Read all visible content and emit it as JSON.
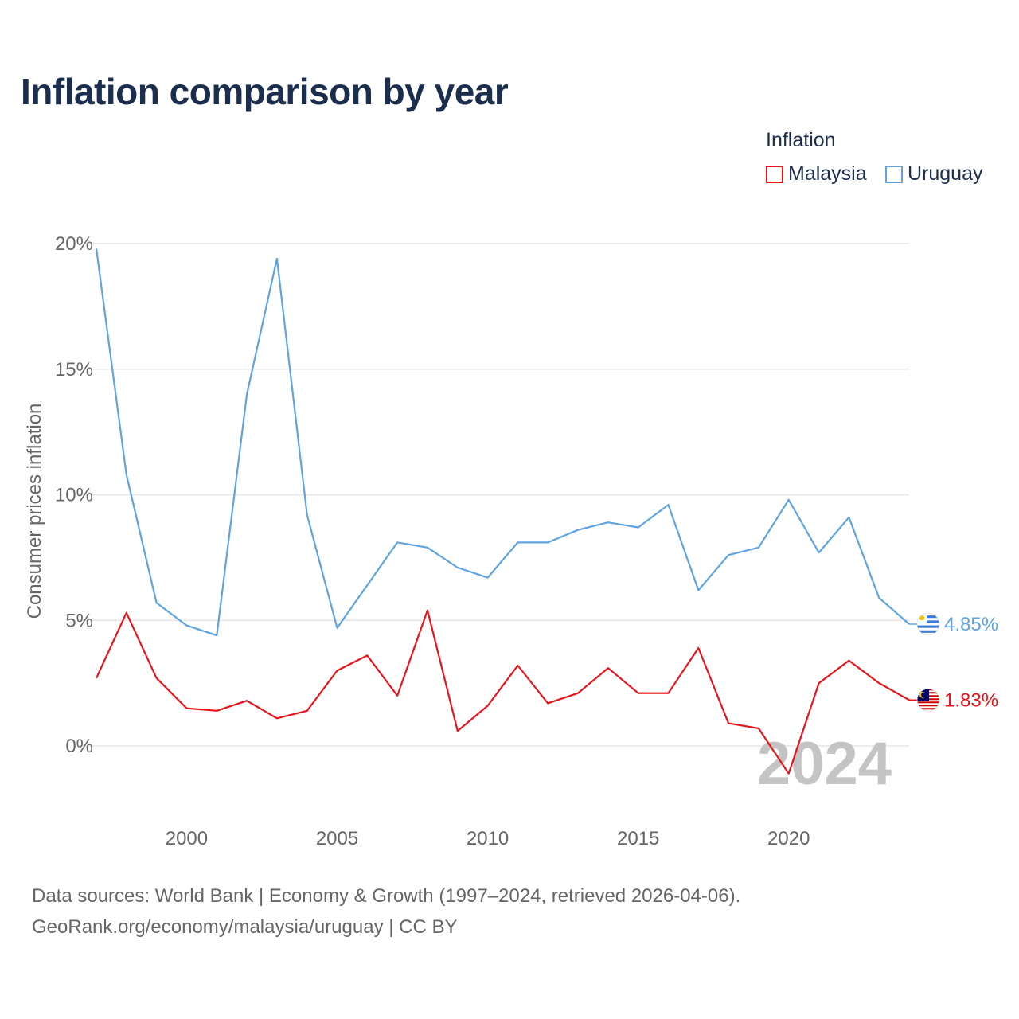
{
  "title": "Inflation comparison by year",
  "legend": {
    "title": "Inflation",
    "items": [
      {
        "name": "Malaysia",
        "color": "#e8141c"
      },
      {
        "name": "Uruguay",
        "color": "#5fa3e0"
      }
    ]
  },
  "source": {
    "line1": "Data sources: World Bank | Economy & Growth (1997–2024, retrieved 2026-04-06).",
    "line2": "GeoRank.org/economy/malaysia/uruguay | CC BY"
  },
  "chart_data": {
    "type": "line",
    "title": "Inflation comparison by year",
    "xlabel": "",
    "ylabel": "Consumer prices inflation",
    "xlim": [
      1997,
      2024
    ],
    "ylim": [
      -2.5,
      20
    ],
    "grid": true,
    "x": [
      1997,
      1998,
      1999,
      2000,
      2001,
      2002,
      2003,
      2004,
      2005,
      2006,
      2007,
      2008,
      2009,
      2010,
      2011,
      2012,
      2013,
      2014,
      2015,
      2016,
      2017,
      2018,
      2019,
      2020,
      2021,
      2022,
      2023,
      2024
    ],
    "x_ticks": [
      2000,
      2005,
      2010,
      2015,
      2020
    ],
    "x_tick_labels": [
      "2000",
      "2005",
      "2010",
      "2015",
      "2020"
    ],
    "y_ticks": [
      0,
      5,
      10,
      15,
      20
    ],
    "y_tick_labels": [
      "0%",
      "5%",
      "10%",
      "15%",
      "20%"
    ],
    "watermark_year": "2024",
    "series": [
      {
        "name": "Uruguay",
        "color": "#5fa3e0",
        "values": [
          19.8,
          10.8,
          5.7,
          4.8,
          4.4,
          14.0,
          19.4,
          9.2,
          4.7,
          6.4,
          8.1,
          7.9,
          7.1,
          6.7,
          8.1,
          8.1,
          8.6,
          8.9,
          8.7,
          9.6,
          6.2,
          7.6,
          7.9,
          9.8,
          7.7,
          9.1,
          5.9,
          4.85
        ],
        "end_label": "4.85%"
      },
      {
        "name": "Malaysia",
        "color": "#e8141c",
        "values": [
          2.7,
          5.3,
          2.7,
          1.5,
          1.4,
          1.8,
          1.1,
          1.4,
          3.0,
          3.6,
          2.0,
          5.4,
          0.6,
          1.6,
          3.2,
          1.7,
          2.1,
          3.1,
          2.1,
          2.1,
          3.9,
          0.9,
          0.7,
          -1.1,
          2.5,
          3.4,
          2.5,
          1.83
        ],
        "end_label": "1.83%"
      }
    ]
  }
}
